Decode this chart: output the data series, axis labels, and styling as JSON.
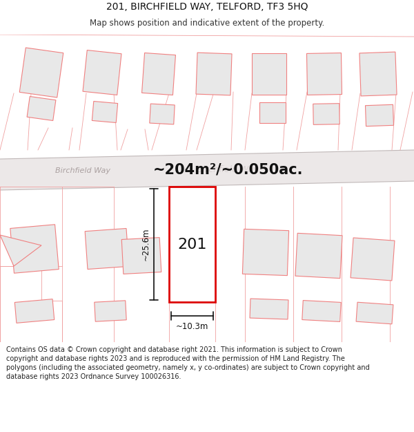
{
  "title": "201, BIRCHFIELD WAY, TELFORD, TF3 5HQ",
  "subtitle": "Map shows position and indicative extent of the property.",
  "footer": "Contains OS data © Crown copyright and database right 2021. This information is subject to Crown copyright and database rights 2023 and is reproduced with the permission of HM Land Registry. The polygons (including the associated geometry, namely x, y co-ordinates) are subject to Crown copyright and database rights 2023 Ordnance Survey 100026316.",
  "area_text": "~204m²/~0.050ac.",
  "street_label": "Birchfield Way",
  "dim_vertical": "~25.6m",
  "dim_horizontal": "~10.3m",
  "property_label": "201",
  "bg_color": "#ffffff",
  "bldg_fill": "#e8e8e8",
  "bldg_edge": "#f08080",
  "highlight_fill": "#ffffff",
  "highlight_edge": "#dd0000",
  "road_fill": "#f0eded",
  "road_edge": "#c8c0c0",
  "title_fontsize": 10,
  "subtitle_fontsize": 8.5,
  "footer_fontsize": 7
}
